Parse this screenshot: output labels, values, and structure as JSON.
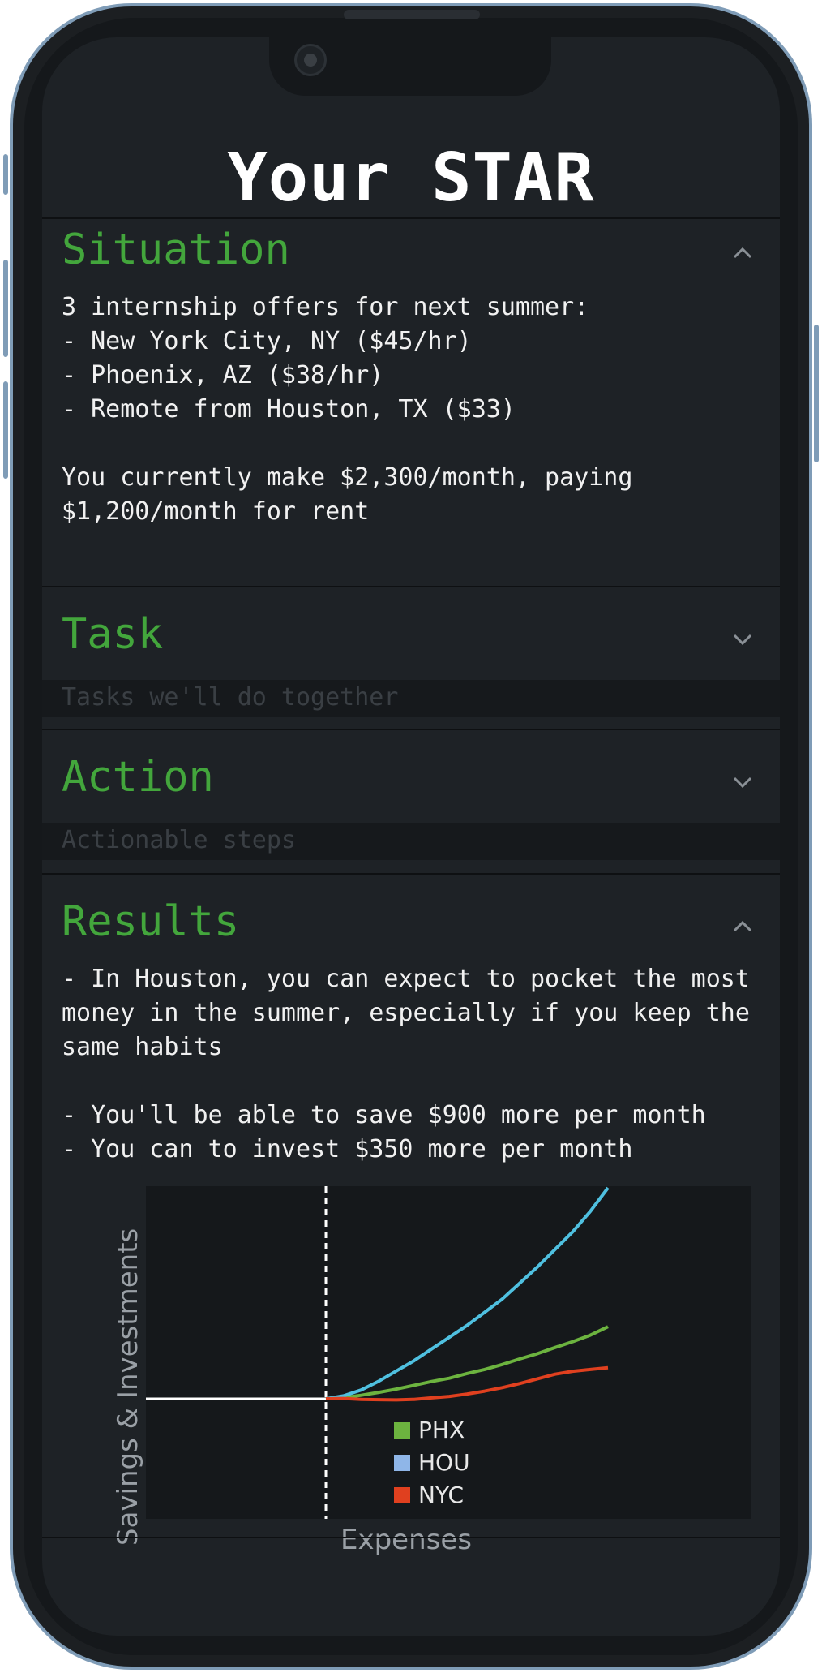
{
  "app": {
    "title": "Your STAR"
  },
  "sections": {
    "situation": {
      "heading": "Situation",
      "expanded": true,
      "text": "3 internship offers for next summer:\n- New York City, NY ($45/hr)\n- Phoenix, AZ ($38/hr)\n- Remote from Houston, TX ($33)\n\nYou currently make $2,300/month, paying $1,200/month for rent"
    },
    "task": {
      "heading": "Task",
      "expanded": false,
      "placeholder": "Tasks we'll do together"
    },
    "action": {
      "heading": "Action",
      "expanded": false,
      "placeholder": "Actionable steps"
    },
    "results": {
      "heading": "Results",
      "expanded": true,
      "text": "- In Houston, you can expect to pocket the most money in the summer, especially if you keep the same habits\n\n- You'll be able to save $900 more per month\n- You can to invest $350 more per month"
    }
  },
  "colors": {
    "accent": "#43a63c",
    "phx": "#6cb33f",
    "hou": "#8fb6e8",
    "nyc": "#e0401f",
    "hou_line": "#4fc0e0"
  },
  "icons": {
    "expanded": "chevron-up-icon",
    "collapsed": "chevron-down-icon"
  },
  "chart_data": {
    "type": "line",
    "title": "",
    "xlabel": "Expenses",
    "ylabel": "Savings & Investments",
    "grid": false,
    "legend_position": "center",
    "x": [
      0,
      1,
      2,
      3,
      4,
      5,
      6,
      7,
      8,
      9,
      10,
      11,
      12,
      13,
      14,
      15,
      16
    ],
    "series": [
      {
        "name": "PHX",
        "color": "#6cb33f",
        "values": [
          0,
          0.4,
          1.2,
          2.2,
          3.3,
          4.6,
          5.9,
          7.0,
          8.6,
          10.0,
          11.7,
          13.6,
          15.4,
          17.5,
          19.5,
          21.7,
          24.6
        ]
      },
      {
        "name": "HOU",
        "color": "#8fb6e8",
        "values": [
          0,
          1.0,
          3.0,
          6.0,
          9.5,
          13.0,
          17.0,
          21.0,
          25.0,
          29.5,
          34.0,
          39.5,
          45.0,
          51.0,
          57.0,
          64.0,
          72.0
        ]
      },
      {
        "name": "NYC",
        "color": "#e0401f",
        "values": [
          0,
          0.1,
          -0.2,
          -0.3,
          -0.4,
          -0.2,
          0.3,
          0.8,
          1.6,
          2.6,
          3.8,
          5.2,
          6.8,
          8.4,
          9.4,
          10.0,
          10.6
        ]
      }
    ],
    "baseline": {
      "color": "#ffffff",
      "style": "solid"
    },
    "divider": {
      "color": "#ffffff",
      "style": "dashed"
    }
  }
}
